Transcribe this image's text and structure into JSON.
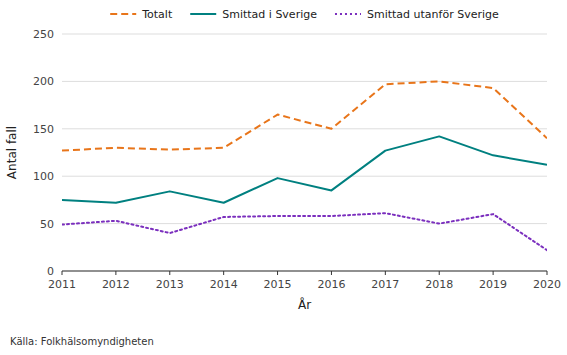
{
  "chart_data": {
    "type": "line",
    "xlabel": "År",
    "ylabel": "Antal fall",
    "annotations": [
      "Källa: Folkhälsomyndigheten"
    ],
    "x": [
      2011,
      2012,
      2013,
      2014,
      2015,
      2016,
      2017,
      2018,
      2019,
      2020
    ],
    "xlim": [
      2011,
      2020
    ],
    "xticks": [
      2011,
      2012,
      2013,
      2014,
      2015,
      2016,
      2017,
      2018,
      2019,
      2020
    ],
    "ylim": [
      0,
      250
    ],
    "yticks": [
      0,
      50,
      100,
      150,
      200,
      250
    ],
    "grid": true,
    "legend": "top",
    "series": [
      {
        "name": "Totalt",
        "color": "#E8751A",
        "line_style": "dashed",
        "values": [
          127,
          130,
          128,
          130,
          165,
          150,
          197,
          200,
          193,
          140
        ]
      },
      {
        "name": "Smittad i Sverige",
        "color": "#008080",
        "line_style": "solid",
        "values": [
          75,
          72,
          84,
          72,
          98,
          85,
          127,
          142,
          122,
          112
        ]
      },
      {
        "name": "Smittad utanför Sverige",
        "color": "#7B2FBE",
        "line_style": "dotted",
        "values": [
          49,
          53,
          40,
          57,
          58,
          58,
          61,
          50,
          60,
          22
        ]
      }
    ]
  }
}
